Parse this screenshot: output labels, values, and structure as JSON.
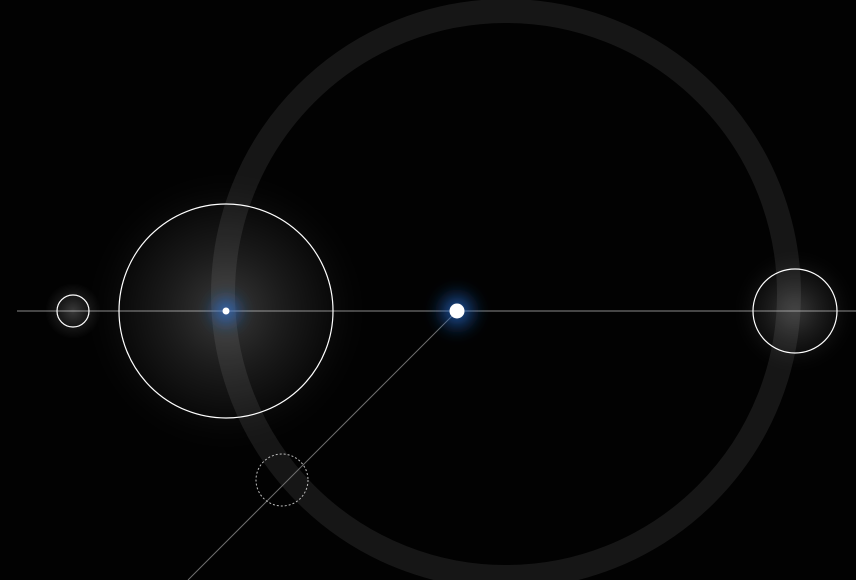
{
  "scene": {
    "background_color": "#020202",
    "ring_color": "#161616",
    "line_color": "#8a8a8a",
    "circle_stroke_color": "#ffffff",
    "glow_color": "#1d5fb8",
    "dot_color": "#ffffff",
    "elements": [
      "horizontal-axis-line",
      "diagonal-guide-line",
      "large-orbit-ring",
      "left-small-circle",
      "center-left-large-circle",
      "right-circle",
      "dashed-circle",
      "left-blue-focus-dot",
      "center-blue-focus-dot"
    ]
  }
}
